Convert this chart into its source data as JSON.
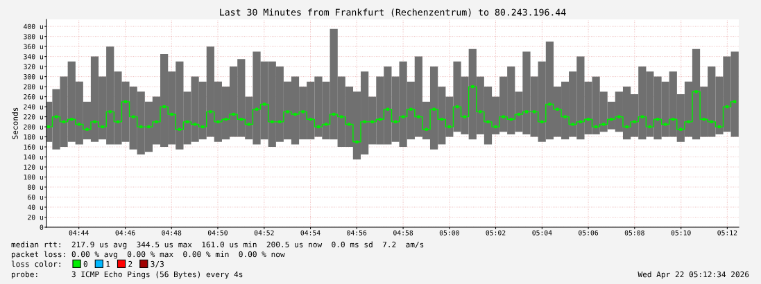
{
  "chart_data": {
    "type": "bar",
    "title": "Last 30 Minutes from Frankfurt (Rechenzentrum) to 80.243.196.44",
    "ylabel": "Seconds",
    "x": [
      4.7114,
      4.717,
      4.7225,
      4.7281,
      4.7336,
      4.7392,
      4.7447,
      4.7503,
      4.7558,
      4.7614,
      4.7669,
      4.7725,
      4.778,
      4.7836,
      4.7891,
      4.7947,
      4.8002,
      4.8058,
      4.8113,
      4.8169,
      4.8224,
      4.828,
      4.8335,
      4.8391,
      4.8446,
      4.8502,
      4.8557,
      4.8613,
      4.8668,
      4.8724,
      4.8779,
      4.8835,
      4.889,
      4.8946,
      4.9001,
      4.9057,
      4.9112,
      4.9168,
      4.9223,
      4.9279,
      4.9334,
      4.939,
      4.9445,
      4.9501,
      4.9556,
      4.9612,
      4.9667,
      4.9723,
      4.9778,
      4.9834,
      4.9889,
      4.9945,
      5.0,
      5.0056,
      5.0111,
      5.0167,
      5.0222,
      5.0278,
      5.0333,
      5.0389,
      5.0444,
      5.05,
      5.0555,
      5.0611,
      5.0666,
      5.0722,
      5.0777,
      5.0833,
      5.0888,
      5.0944,
      5.0999,
      5.1055,
      5.111,
      5.1166,
      5.1221,
      5.1277,
      5.1332,
      5.1388,
      5.1443,
      5.1499,
      5.1554,
      5.161,
      5.1665,
      5.1721,
      5.1776,
      5.1832,
      5.1887,
      5.1943,
      5.1998,
      5.2054
    ],
    "series": [
      {
        "color": "#707070",
        "base": [
          170,
          155,
          160,
          170,
          165,
          175,
          170,
          175,
          165,
          165,
          170,
          155,
          145,
          150,
          165,
          160,
          165,
          155,
          165,
          170,
          175,
          180,
          170,
          175,
          180,
          180,
          175,
          165,
          175,
          160,
          170,
          175,
          165,
          175,
          175,
          180,
          175,
          175,
          160,
          160,
          135,
          145,
          165,
          165,
          165,
          170,
          160,
          175,
          180,
          175,
          155,
          165,
          180,
          190,
          185,
          175,
          185,
          165,
          185,
          190,
          185,
          190,
          185,
          180,
          170,
          175,
          180,
          175,
          180,
          175,
          185,
          185,
          190,
          195,
          190,
          175,
          180,
          175,
          180,
          175,
          180,
          180,
          170,
          180,
          175,
          180,
          180,
          185,
          190,
          180
        ],
        "values": [
          80,
          120,
          140,
          160,
          125,
          75,
          170,
          125,
          195,
          145,
          120,
          125,
          125,
          100,
          95,
          185,
          145,
          175,
          105,
          130,
          115,
          180,
          120,
          105,
          140,
          155,
          85,
          185,
          155,
          170,
          150,
          115,
          135,
          105,
          115,
          120,
          115,
          220,
          140,
          120,
          135,
          165,
          95,
          135,
          155,
          130,
          170,
          115,
          160,
          75,
          165,
          115,
          80,
          140,
          115,
          180,
          115,
          115,
          75,
          110,
          135,
          80,
          165,
          120,
          160,
          195,
          100,
          115,
          130,
          165,
          105,
          115,
          80,
          55,
          80,
          105,
          85,
          145,
          130,
          125,
          110,
          130,
          95,
          110,
          180,
          100,
          140,
          115,
          150,
          170
        ]
      },
      {
        "type": "step",
        "name": "0",
        "color": "#00ee00",
        "marker": "square",
        "values": [
          200,
          220,
          210,
          215,
          205,
          195,
          210,
          200,
          230,
          210,
          250,
          220,
          200,
          200,
          210,
          240,
          225,
          195,
          210,
          205,
          200,
          230,
          210,
          215,
          225,
          215,
          205,
          235,
          245,
          210,
          210,
          230,
          225,
          230,
          215,
          200,
          205,
          225,
          220,
          205,
          170,
          210,
          210,
          215,
          235,
          210,
          220,
          235,
          220,
          195,
          235,
          215,
          200,
          240,
          220,
          280,
          230,
          210,
          200,
          220,
          215,
          225,
          230,
          230,
          210,
          245,
          235,
          220,
          205,
          210,
          215,
          200,
          205,
          215,
          220,
          200,
          210,
          220,
          200,
          215,
          205,
          215,
          195,
          210,
          270,
          215,
          210,
          200,
          240,
          250
        ]
      },
      {
        "type": "step",
        "name": "1",
        "color": "#00b8ff",
        "values": [
          null,
          null,
          null,
          null,
          null,
          null,
          null,
          null,
          null,
          null,
          null,
          null,
          null,
          null,
          null,
          null,
          null,
          null,
          null,
          null,
          null,
          null,
          null,
          null,
          null,
          null,
          null,
          null,
          null,
          null,
          null,
          null,
          null,
          null,
          null,
          null,
          null,
          null,
          null,
          null,
          null,
          null,
          null,
          null,
          null,
          null,
          null,
          null,
          null,
          null,
          null,
          null,
          null,
          null,
          null,
          null,
          null,
          null,
          null,
          null,
          null,
          null,
          null,
          null,
          null,
          null,
          null,
          null,
          null,
          null,
          null,
          null,
          null,
          null,
          null,
          null,
          null,
          null,
          null,
          null,
          null,
          null,
          null,
          null,
          null,
          null,
          null,
          null,
          null,
          null
        ]
      },
      {
        "type": "step",
        "name": "2",
        "color": "#ff0000",
        "values": [
          null,
          null,
          null,
          null,
          null,
          null,
          null,
          null,
          null,
          null,
          null,
          null,
          null,
          null,
          null,
          null,
          null,
          null,
          null,
          null,
          null,
          null,
          null,
          null,
          null,
          null,
          null,
          null,
          null,
          null,
          null,
          null,
          null,
          null,
          null,
          null,
          null,
          null,
          null,
          null,
          null,
          null,
          null,
          null,
          null,
          null,
          null,
          null,
          null,
          null,
          null,
          null,
          null,
          null,
          null,
          null,
          null,
          null,
          null,
          null,
          null,
          null,
          null,
          null,
          null,
          null,
          null,
          null,
          null,
          null,
          null,
          null,
          null,
          null,
          null,
          null,
          null,
          null,
          null,
          null,
          null,
          null,
          null,
          null,
          null,
          null,
          null,
          null,
          null,
          null
        ]
      },
      {
        "type": "step",
        "name": "3/3",
        "color": "#a00000",
        "values": [
          null,
          null,
          null,
          null,
          null,
          null,
          null,
          null,
          null,
          null,
          null,
          null,
          null,
          null,
          null,
          null,
          null,
          null,
          null,
          null,
          null,
          null,
          null,
          null,
          null,
          null,
          null,
          null,
          null,
          null,
          null,
          null,
          null,
          null,
          null,
          null,
          null,
          null,
          null,
          null,
          null,
          null,
          null,
          null,
          null,
          null,
          null,
          null,
          null,
          null,
          null,
          null,
          null,
          null,
          null,
          null,
          null,
          null,
          null,
          null,
          null,
          null,
          null,
          null,
          null,
          null,
          null,
          null,
          null,
          null,
          null,
          null,
          null,
          null,
          null,
          null,
          null,
          null,
          null,
          null,
          null,
          null,
          null,
          null,
          null,
          null,
          null,
          null,
          null,
          null
        ]
      }
    ],
    "xlim": [
      4.71,
      5.2083
    ],
    "xticks": [
      {
        "value": 4.7333,
        "label": "04:44"
      },
      {
        "value": 4.7667,
        "label": "04:46"
      },
      {
        "value": 4.8,
        "label": "04:48"
      },
      {
        "value": 4.8333,
        "label": "04:50"
      },
      {
        "value": 4.8667,
        "label": "04:52"
      },
      {
        "value": 4.9,
        "label": "04:54"
      },
      {
        "value": 4.9333,
        "label": "04:56"
      },
      {
        "value": 4.9667,
        "label": "04:58"
      },
      {
        "value": 5.0,
        "label": "05:00"
      },
      {
        "value": 5.0333,
        "label": "05:02"
      },
      {
        "value": 5.0667,
        "label": "05:04"
      },
      {
        "value": 5.1,
        "label": "05:06"
      },
      {
        "value": 5.1333,
        "label": "05:08"
      },
      {
        "value": 5.1667,
        "label": "05:10"
      },
      {
        "value": 5.2,
        "label": "05:12"
      }
    ],
    "ylim": [
      0,
      414
    ],
    "yticks": [
      0,
      {
        "value": 20,
        "label": "20 u"
      },
      {
        "value": 40,
        "label": "40 u"
      },
      {
        "value": 60,
        "label": "60 u"
      },
      {
        "value": 80,
        "label": "80 u"
      },
      {
        "value": 100,
        "label": "100 u"
      },
      {
        "value": 120,
        "label": "120 u"
      },
      {
        "value": 140,
        "label": "140 u"
      },
      {
        "value": 160,
        "label": "160 u"
      },
      {
        "value": 180,
        "label": "180 u"
      },
      {
        "value": 200,
        "label": "200 u"
      },
      {
        "value": 220,
        "label": "220 u"
      },
      {
        "value": 240,
        "label": "240 u"
      },
      {
        "value": 260,
        "label": "260 u"
      },
      {
        "value": 280,
        "label": "280 u"
      },
      {
        "value": 300,
        "label": "300 u"
      },
      {
        "value": 320,
        "label": "320 u"
      },
      {
        "value": 340,
        "label": "340 u"
      },
      {
        "value": 360,
        "label": "360 u"
      },
      {
        "value": 380,
        "label": "380 u"
      },
      {
        "value": 400,
        "label": "400 u"
      }
    ],
    "grid": true,
    "legend": "bottom left",
    "annotations": [
      "median rtt:  217.9 us avg  344.5 us max  161.0 us min  200.5 us now  0.0 ms sd  7.2  am/s",
      "packet loss: 0.00 % avg  0.00 % max  0.00 % min  0.00 % now",
      "loss color:",
      "probe:       3 ICMP Echo Pings (56 Bytes) every 4s",
      "Wed Apr 22 05:12:34 2026"
    ]
  }
}
